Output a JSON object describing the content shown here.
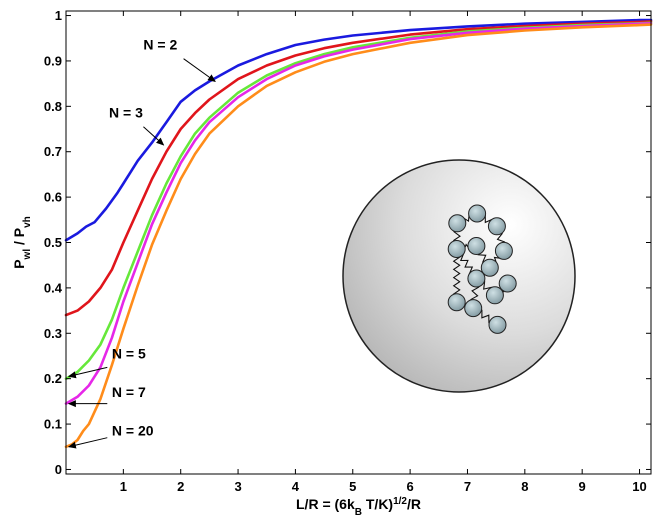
{
  "chart_data": {
    "type": "line",
    "xlabel": "L/R = (6k_B T/K)^{1/2}/R",
    "xlabel_parts": {
      "pre": "L/R = (6k",
      "sub": "B",
      "mid": " T/K)",
      "sup": "1/2",
      "post": "/R"
    },
    "ylabel": "P_wl / P_vh",
    "ylabel_parts": {
      "p1": "P",
      "sub1": "wl",
      "sep": " / P",
      "sub2": "vh"
    },
    "xlim": [
      0,
      10.2
    ],
    "ylim": [
      -0.01,
      1.01
    ],
    "xticks": [
      1,
      2,
      3,
      4,
      5,
      6,
      7,
      8,
      9,
      10
    ],
    "yticks": [
      0,
      0.1,
      0.2,
      0.3,
      0.4,
      0.5,
      0.6,
      0.7,
      0.8,
      0.9,
      1
    ],
    "xtick_labels": [
      "1",
      "2",
      "3",
      "4",
      "5",
      "6",
      "7",
      "8",
      "9",
      "10"
    ],
    "ytick_labels": [
      "0",
      "0.1",
      "0.2",
      "0.3",
      "0.4",
      "0.5",
      "0.6",
      "0.7",
      "0.8",
      "0.9",
      "1"
    ],
    "grid": false,
    "series": [
      {
        "name": "N = 2",
        "color": "#1a1adf",
        "x": [
          0,
          0.2,
          0.35,
          0.5,
          0.7,
          0.9,
          1.0,
          1.25,
          1.5,
          1.75,
          2.0,
          2.25,
          2.5,
          3.0,
          3.5,
          4.0,
          4.5,
          5.0,
          6.0,
          7.0,
          8.0,
          9.0,
          10.0,
          10.2
        ],
        "y": [
          0.505,
          0.52,
          0.535,
          0.545,
          0.575,
          0.61,
          0.63,
          0.68,
          0.72,
          0.765,
          0.81,
          0.835,
          0.855,
          0.89,
          0.915,
          0.935,
          0.947,
          0.956,
          0.968,
          0.976,
          0.982,
          0.986,
          0.99,
          0.99
        ]
      },
      {
        "name": "N = 3",
        "color": "#e0151b",
        "x": [
          0,
          0.2,
          0.4,
          0.6,
          0.8,
          1.0,
          1.25,
          1.5,
          1.75,
          2.0,
          2.25,
          2.5,
          3.0,
          3.5,
          4.0,
          4.5,
          5.0,
          6.0,
          7.0,
          8.0,
          9.0,
          10.0,
          10.2
        ],
        "y": [
          0.34,
          0.35,
          0.37,
          0.4,
          0.44,
          0.5,
          0.57,
          0.64,
          0.7,
          0.75,
          0.785,
          0.815,
          0.86,
          0.89,
          0.912,
          0.928,
          0.94,
          0.958,
          0.97,
          0.977,
          0.982,
          0.986,
          0.987
        ]
      },
      {
        "name": "N = 5",
        "color": "#66e83a",
        "x": [
          0,
          0.2,
          0.4,
          0.6,
          0.8,
          1.0,
          1.25,
          1.5,
          1.75,
          2.0,
          2.25,
          2.5,
          3.0,
          3.5,
          4.0,
          4.5,
          5.0,
          6.0,
          7.0,
          8.0,
          9.0,
          10.0,
          10.2
        ],
        "y": [
          0.2,
          0.215,
          0.24,
          0.275,
          0.33,
          0.4,
          0.48,
          0.56,
          0.63,
          0.69,
          0.74,
          0.775,
          0.83,
          0.868,
          0.895,
          0.915,
          0.93,
          0.951,
          0.965,
          0.973,
          0.979,
          0.983,
          0.984
        ]
      },
      {
        "name": "N = 7",
        "color": "#e627e8",
        "x": [
          0,
          0.2,
          0.4,
          0.6,
          0.8,
          1.0,
          1.25,
          1.5,
          1.75,
          2.0,
          2.25,
          2.5,
          3.0,
          3.5,
          4.0,
          4.5,
          5.0,
          6.0,
          7.0,
          8.0,
          9.0,
          10.0,
          10.2
        ],
        "y": [
          0.145,
          0.16,
          0.185,
          0.225,
          0.29,
          0.37,
          0.455,
          0.54,
          0.61,
          0.675,
          0.725,
          0.765,
          0.82,
          0.86,
          0.89,
          0.91,
          0.925,
          0.948,
          0.962,
          0.971,
          0.977,
          0.982,
          0.983
        ]
      },
      {
        "name": "N = 20",
        "color": "#ff8c1a",
        "x": [
          0,
          0.1,
          0.2,
          0.3,
          0.4,
          0.6,
          0.8,
          1.0,
          1.25,
          1.5,
          1.75,
          2.0,
          2.25,
          2.5,
          3.0,
          3.5,
          4.0,
          4.5,
          5.0,
          6.0,
          7.0,
          8.0,
          9.0,
          10.0,
          10.2
        ],
        "y": [
          0.05,
          0.055,
          0.065,
          0.085,
          0.1,
          0.155,
          0.23,
          0.31,
          0.405,
          0.495,
          0.57,
          0.64,
          0.695,
          0.74,
          0.8,
          0.845,
          0.875,
          0.898,
          0.915,
          0.94,
          0.957,
          0.967,
          0.974,
          0.979,
          0.98
        ]
      }
    ],
    "annotations": [
      {
        "text": "N = 2",
        "text_x": 1.35,
        "text_y": 0.925,
        "arrow_from": [
          2.05,
          0.905
        ],
        "arrow_to": [
          2.6,
          0.855
        ]
      },
      {
        "text": "N = 3",
        "text_x": 0.75,
        "text_y": 0.775,
        "arrow_from": [
          1.35,
          0.755
        ],
        "arrow_to": [
          1.7,
          0.715
        ]
      },
      {
        "text": "N = 5",
        "text_x": 0.8,
        "text_y": 0.245,
        "arrow_from": [
          0.72,
          0.225
        ],
        "arrow_to": [
          0.05,
          0.205
        ]
      },
      {
        "text": "N = 7",
        "text_x": 0.8,
        "text_y": 0.16,
        "arrow_from": [
          0.72,
          0.145
        ],
        "arrow_to": [
          0.05,
          0.145
        ]
      },
      {
        "text": "N = 20",
        "text_x": 0.8,
        "text_y": 0.075,
        "arrow_from": [
          0.72,
          0.07
        ],
        "arrow_to": [
          0.05,
          0.05
        ]
      }
    ],
    "inset": {
      "description_icon": "polymer-chain-in-sphere-icon",
      "bead_color": "#8fa8b0",
      "beads": [
        [
          0.13,
          -0.23
        ],
        [
          0.44,
          -0.33
        ],
        [
          0.75,
          -0.2
        ],
        [
          0.86,
          0.05
        ],
        [
          0.64,
          0.22
        ],
        [
          0.43,
          0.0
        ],
        [
          0.12,
          0.03
        ],
        [
          0.43,
          0.33
        ],
        [
          0.72,
          0.5
        ],
        [
          0.92,
          0.38
        ],
        [
          0.38,
          0.63
        ],
        [
          0.76,
          0.8
        ],
        [
          0.12,
          0.57
        ]
      ]
    }
  }
}
